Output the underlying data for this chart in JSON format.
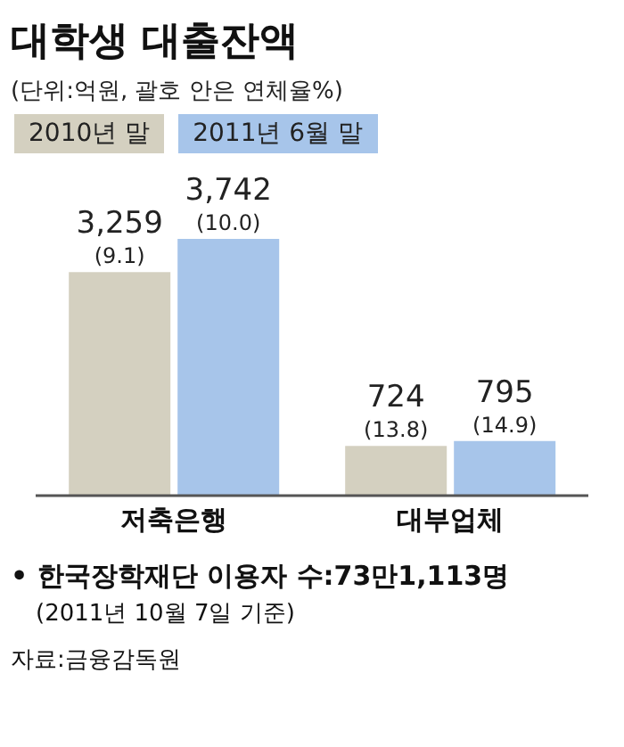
{
  "chart_data": {
    "type": "bar",
    "title": "대학생 대출잔액",
    "subtitle": "(단위:억원, 괄호 안은 연체율%)",
    "categories": [
      "저축은행",
      "대부업체"
    ],
    "series": [
      {
        "name": "2010년 말",
        "color": "#d4d0c0",
        "values": [
          3259,
          724
        ],
        "value_labels": [
          "3,259 (9.1)",
          "724 (13.8)"
        ]
      },
      {
        "name": "2011년 6월 말",
        "color": "#a7c5ea",
        "values": [
          3742,
          795
        ],
        "value_labels": [
          "3,742 (10.0)",
          "795 (14.9)"
        ]
      }
    ],
    "legend": "top left",
    "grid": false,
    "annotations": [
      "• 한국장학재단 이용자 수:73만1,113명",
      "(2011년 10월 7일 기준)",
      "자료:금융감독원"
    ]
  }
}
